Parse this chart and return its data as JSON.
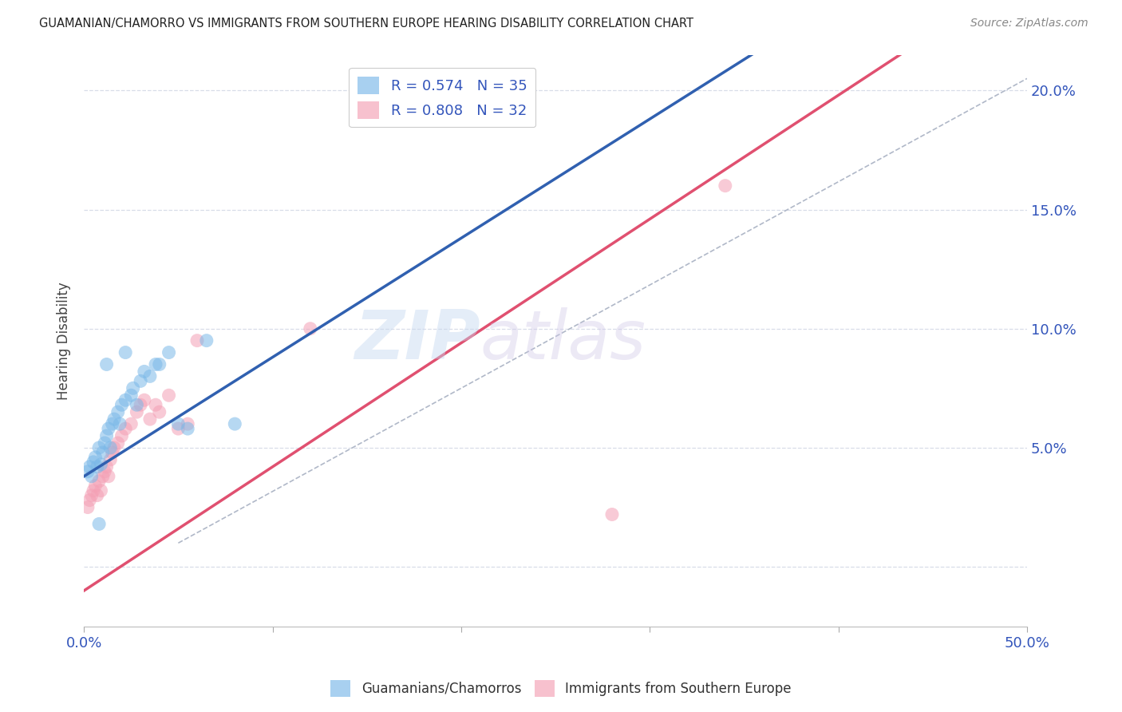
{
  "title": "GUAMANIAN/CHAMORRO VS IMMIGRANTS FROM SOUTHERN EUROPE HEARING DISABILITY CORRELATION CHART",
  "source": "Source: ZipAtlas.com",
  "ylabel": "Hearing Disability",
  "xlim": [
    0.0,
    0.5
  ],
  "ylim": [
    -0.025,
    0.215
  ],
  "yticks": [
    0.0,
    0.05,
    0.1,
    0.15,
    0.2
  ],
  "ytick_labels": [
    "",
    "5.0%",
    "10.0%",
    "15.0%",
    "20.0%"
  ],
  "xticks": [
    0.0,
    0.1,
    0.2,
    0.3,
    0.4,
    0.5
  ],
  "xtick_labels": [
    "0.0%",
    "",
    "",
    "",
    "",
    "50.0%"
  ],
  "blue_color": "#7ab8e8",
  "pink_color": "#f4a0b5",
  "blue_line_color": "#3060b0",
  "pink_line_color": "#e05070",
  "dashed_line_color": "#b0b8c8",
  "R_blue": 0.574,
  "N_blue": 35,
  "R_pink": 0.808,
  "N_pink": 32,
  "watermark_zip": "ZIP",
  "watermark_atlas": "atlas",
  "legend_label_blue": "Guamanians/Chamorros",
  "legend_label_pink": "Immigrants from Southern Europe",
  "blue_scatter_x": [
    0.002,
    0.003,
    0.004,
    0.005,
    0.006,
    0.007,
    0.008,
    0.009,
    0.01,
    0.011,
    0.012,
    0.013,
    0.014,
    0.015,
    0.016,
    0.018,
    0.019,
    0.02,
    0.022,
    0.025,
    0.026,
    0.028,
    0.03,
    0.032,
    0.035,
    0.038,
    0.04,
    0.045,
    0.05,
    0.055,
    0.065,
    0.08,
    0.012,
    0.022,
    0.008
  ],
  "blue_scatter_y": [
    0.04,
    0.042,
    0.038,
    0.044,
    0.046,
    0.042,
    0.05,
    0.043,
    0.048,
    0.052,
    0.055,
    0.058,
    0.05,
    0.06,
    0.062,
    0.065,
    0.06,
    0.068,
    0.07,
    0.072,
    0.075,
    0.068,
    0.078,
    0.082,
    0.08,
    0.085,
    0.085,
    0.09,
    0.06,
    0.058,
    0.095,
    0.06,
    0.085,
    0.09,
    0.018
  ],
  "pink_scatter_x": [
    0.002,
    0.003,
    0.004,
    0.005,
    0.006,
    0.007,
    0.008,
    0.009,
    0.01,
    0.011,
    0.012,
    0.013,
    0.014,
    0.015,
    0.016,
    0.018,
    0.02,
    0.022,
    0.025,
    0.028,
    0.03,
    0.032,
    0.035,
    0.038,
    0.04,
    0.045,
    0.05,
    0.055,
    0.06,
    0.12,
    0.34,
    0.28
  ],
  "pink_scatter_y": [
    0.025,
    0.028,
    0.03,
    0.032,
    0.034,
    0.03,
    0.036,
    0.032,
    0.038,
    0.04,
    0.042,
    0.038,
    0.045,
    0.048,
    0.05,
    0.052,
    0.055,
    0.058,
    0.06,
    0.065,
    0.068,
    0.07,
    0.062,
    0.068,
    0.065,
    0.072,
    0.058,
    0.06,
    0.095,
    0.1,
    0.16,
    0.022
  ],
  "blue_line_intercept": 0.038,
  "blue_line_slope": 0.5,
  "pink_line_intercept": -0.01,
  "pink_line_slope": 0.52,
  "diag_line_x": [
    0.05,
    0.5
  ],
  "diag_line_y": [
    0.01,
    0.205
  ],
  "background_color": "#ffffff",
  "grid_color": "#d8dde8"
}
